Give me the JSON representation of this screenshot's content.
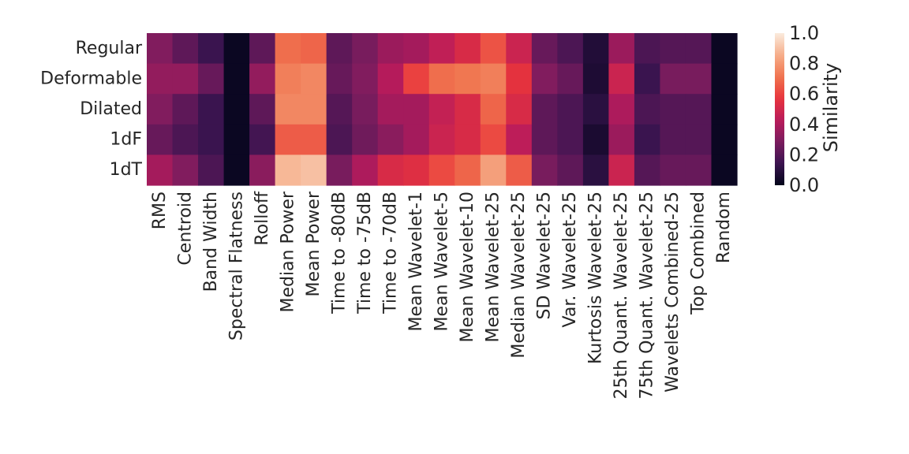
{
  "chart_data": {
    "type": "heatmap",
    "title": "",
    "xlabel": "",
    "ylabel": "",
    "rows": [
      "Regular",
      "Deformable",
      "Dilated",
      "1dF",
      "1dT"
    ],
    "columns": [
      "RMS",
      "Centroid",
      "Band Width",
      "Spectral Flatness",
      "Rolloff",
      "Median Power",
      "Mean Power",
      "Time to -80dB",
      "Time to -75dB",
      "Time to -70dB",
      "Mean Wavelet-1",
      "Mean Wavelet-5",
      "Mean Wavelet-10",
      "Mean Wavelet-25",
      "Median Wavelet-25",
      "SD Wavelet-25",
      "Var. Wavelet-25",
      "Kurtosis Wavelet-25",
      "25th Quant. Wavelet-25",
      "75th Quant. Wavelet-25",
      "Wavelets Combined-25",
      "Top Combined",
      "Random"
    ],
    "values": [
      [
        0.3,
        0.22,
        0.14,
        0.02,
        0.22,
        0.7,
        0.68,
        0.22,
        0.28,
        0.36,
        0.38,
        0.45,
        0.52,
        0.64,
        0.48,
        0.24,
        0.18,
        0.08,
        0.36,
        0.18,
        0.2,
        0.2,
        0.02
      ],
      [
        0.34,
        0.34,
        0.24,
        0.02,
        0.34,
        0.74,
        0.76,
        0.24,
        0.3,
        0.42,
        0.6,
        0.7,
        0.72,
        0.74,
        0.56,
        0.3,
        0.24,
        0.07,
        0.48,
        0.14,
        0.28,
        0.28,
        0.02
      ],
      [
        0.3,
        0.22,
        0.14,
        0.02,
        0.22,
        0.76,
        0.76,
        0.2,
        0.28,
        0.38,
        0.38,
        0.46,
        0.52,
        0.68,
        0.52,
        0.22,
        0.18,
        0.1,
        0.4,
        0.18,
        0.2,
        0.2,
        0.02
      ],
      [
        0.24,
        0.18,
        0.14,
        0.02,
        0.16,
        0.66,
        0.66,
        0.18,
        0.26,
        0.32,
        0.38,
        0.48,
        0.52,
        0.62,
        0.44,
        0.22,
        0.18,
        0.06,
        0.36,
        0.14,
        0.2,
        0.2,
        0.02
      ],
      [
        0.38,
        0.3,
        0.18,
        0.02,
        0.32,
        0.88,
        0.9,
        0.28,
        0.4,
        0.52,
        0.54,
        0.62,
        0.68,
        0.82,
        0.66,
        0.28,
        0.22,
        0.1,
        0.48,
        0.2,
        0.24,
        0.24,
        0.02
      ]
    ],
    "colormap": [
      "#03051a",
      "#3b1450",
      "#7b1c5e",
      "#b91b5b",
      "#e8343c",
      "#f0754f",
      "#f6ae8a",
      "#faebdd"
    ],
    "colorbar": {
      "label": "Similarity",
      "range": [
        0.0,
        1.0
      ],
      "ticks": [
        0.0,
        0.2,
        0.4,
        0.6,
        0.8,
        1.0
      ],
      "tick_labels": [
        "0.0",
        "0.2",
        "0.4",
        "0.6",
        "0.8",
        "1.0"
      ]
    },
    "grid": false
  }
}
